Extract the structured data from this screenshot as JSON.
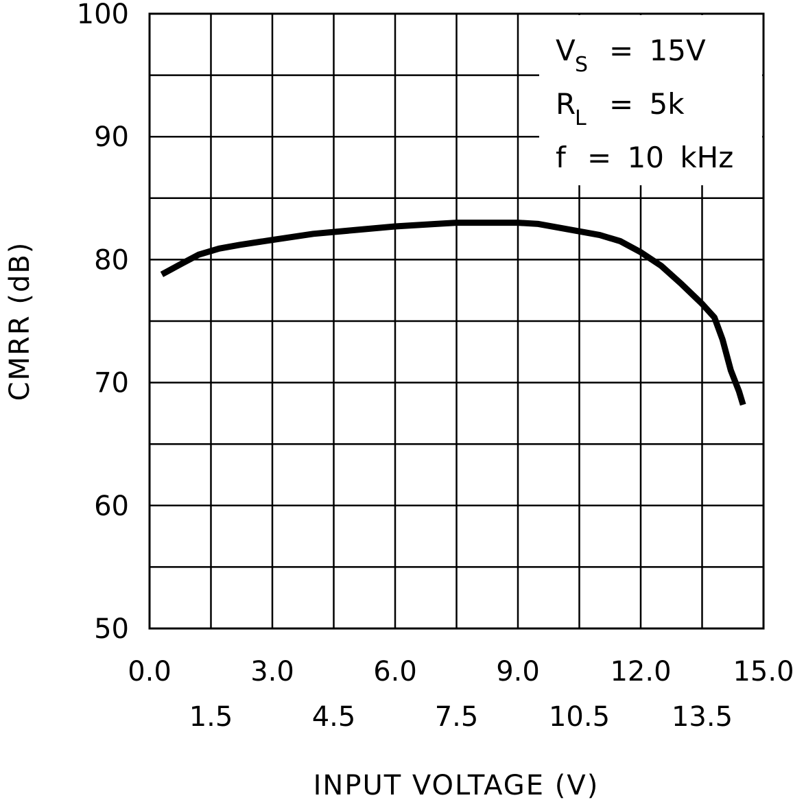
{
  "chart_data": {
    "type": "line",
    "title": "",
    "xlabel": "INPUT VOLTAGE (V)",
    "ylabel": "CMRR (dB)",
    "xlim": [
      0,
      15
    ],
    "ylim": [
      50,
      100
    ],
    "grid": true,
    "x_ticks_row1": [
      "0.0",
      "3.0",
      "6.0",
      "9.0",
      "12.0",
      "15.0"
    ],
    "x_ticks_row2": [
      "1.5",
      "4.5",
      "7.5",
      "10.5",
      "13.5"
    ],
    "y_ticks": [
      "50",
      "60",
      "70",
      "80",
      "90",
      "100"
    ],
    "annotations": [
      {
        "main": "V",
        "sub": "S",
        "rest": "= 15V"
      },
      {
        "main": "R",
        "sub": "L",
        "rest": "= 5k"
      },
      {
        "main": "f",
        "sub": "",
        "rest": "= 10 kHz"
      }
    ],
    "legend_position": "top-right",
    "series": [
      {
        "x": [
          0.3,
          0.8,
          1.2,
          1.7,
          2.2,
          3.0,
          4.0,
          5.0,
          6.0,
          7.0,
          7.5,
          8.0,
          8.5,
          9.0,
          9.5,
          10.0,
          10.5,
          11.0,
          11.5,
          12.0,
          12.5,
          13.0,
          13.5,
          13.8,
          14.0,
          14.2,
          14.4,
          14.5
        ],
        "y": [
          78.8,
          79.7,
          80.4,
          80.9,
          81.2,
          81.6,
          82.1,
          82.4,
          82.7,
          82.9,
          83.0,
          83.0,
          83.0,
          83.0,
          82.9,
          82.6,
          82.3,
          82.0,
          81.5,
          80.6,
          79.5,
          78.0,
          76.4,
          75.3,
          73.5,
          71.0,
          69.3,
          68.2
        ]
      }
    ]
  }
}
